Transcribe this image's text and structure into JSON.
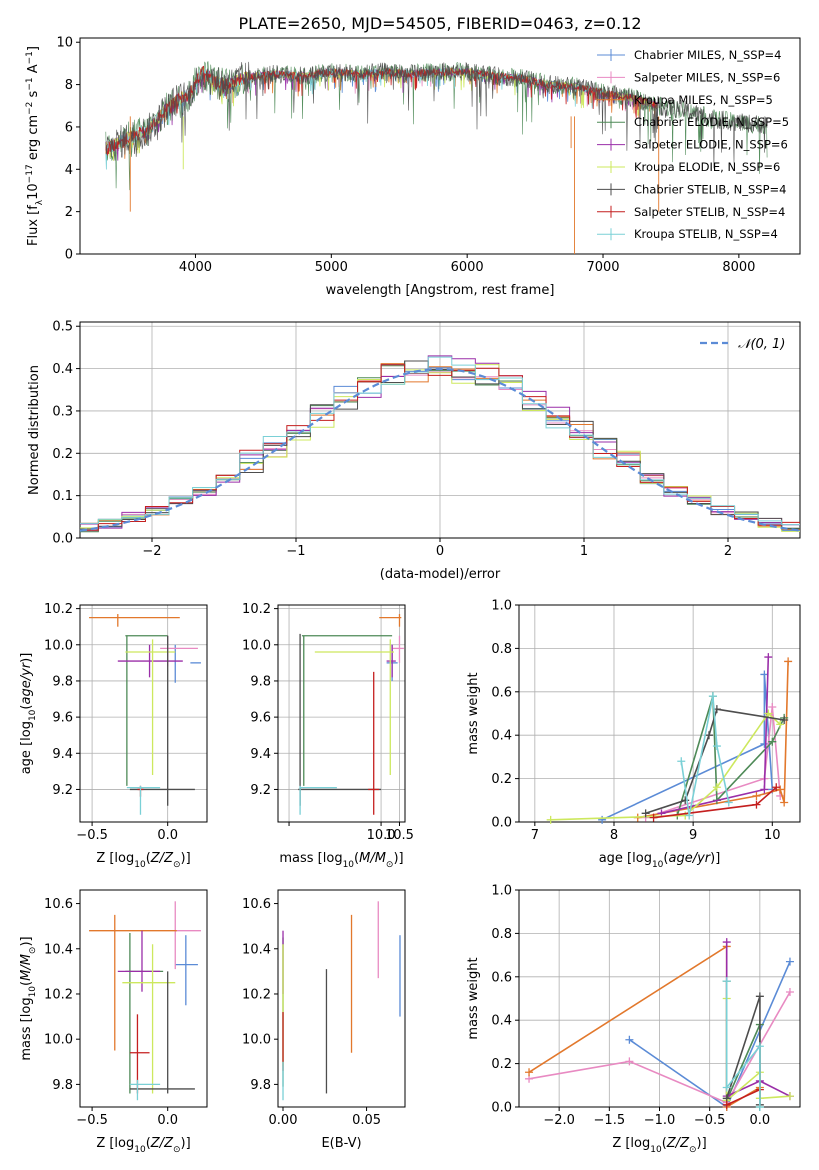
{
  "chart_data": [
    {
      "id": "spectrum",
      "type": "line",
      "title": "PLATE=2650, MJD=54505, FIBERID=0463, z=0.12",
      "xlabel": "wavelength [Angstrom, rest frame]",
      "ylabel": "Flux [f_λ 10^-17 erg cm^-2 s^-1 A^-1]",
      "xlim": [
        3150,
        8450
      ],
      "ylim": [
        0,
        10.2
      ],
      "xticks": [
        4000,
        5000,
        6000,
        7000,
        8000
      ],
      "yticks": [
        0,
        2,
        4,
        6,
        8,
        10
      ],
      "grid": false,
      "legend_position": "top-right",
      "series": [
        {
          "name": "Chabrier MILES, N_SSP=4",
          "color": "#5b8bd6"
        },
        {
          "name": "Salpeter MILES, N_SSP=6",
          "color": "#e88ac2"
        },
        {
          "name": "Kroupa MILES, N_SSP=5",
          "color": "#e2782c"
        },
        {
          "name": "Chabrier ELODIE, N_SSP=5",
          "color": "#4e8a57"
        },
        {
          "name": "Salpeter ELODIE, N_SSP=6",
          "color": "#9a2ea8"
        },
        {
          "name": "Kroupa ELODIE, N_SSP=6",
          "color": "#cde85e"
        },
        {
          "name": "Chabrier STELIB, N_SSP=4",
          "color": "#4d4d4d"
        },
        {
          "name": "Salpeter STELIB, N_SSP=4",
          "color": "#c41f1f"
        },
        {
          "name": "Kroupa STELIB, N_SSP=4",
          "color": "#7ad0d6"
        }
      ],
      "profile_x": [
        3350,
        3450,
        3550,
        3650,
        3750,
        3850,
        3950,
        4050,
        4150,
        4250,
        4350,
        4450,
        4600,
        4800,
        5000,
        5200,
        5400,
        5600,
        5800,
        6000,
        6200,
        6400,
        6600,
        6800,
        7000,
        7200,
        7400,
        7600,
        7800,
        8000,
        8200
      ],
      "profile_y": [
        5.0,
        5.3,
        5.6,
        5.8,
        6.6,
        7.2,
        7.5,
        8.6,
        8.1,
        8.0,
        8.3,
        8.4,
        8.5,
        8.4,
        8.6,
        8.5,
        8.6,
        8.5,
        8.6,
        8.6,
        8.4,
        8.3,
        8.0,
        7.9,
        7.6,
        7.4,
        7.0,
        6.8,
        6.4,
        6.2,
        6.1
      ]
    },
    {
      "id": "residuals",
      "type": "step",
      "xlabel": "(data-model)/error",
      "ylabel": "Normed distribution",
      "xlim": [
        -2.5,
        2.5
      ],
      "ylim": [
        0,
        0.51
      ],
      "xticks": [
        -2,
        -1,
        0,
        1,
        2
      ],
      "yticks": [
        0.0,
        0.1,
        0.2,
        0.3,
        0.4,
        0.5
      ],
      "grid": true,
      "legend": "N(0,1)",
      "legend_position": "top-right",
      "gauss_color": "#5b8bd6",
      "hist_values": [
        0.02,
        0.025,
        0.035,
        0.05,
        0.065,
        0.09,
        0.11,
        0.14,
        0.18,
        0.21,
        0.25,
        0.29,
        0.33,
        0.36,
        0.385,
        0.395,
        0.4,
        0.395,
        0.385,
        0.36,
        0.33,
        0.29,
        0.25,
        0.21,
        0.18,
        0.14,
        0.11,
        0.09,
        0.065,
        0.05,
        0.035,
        0.025,
        0.02
      ]
    },
    {
      "id": "age_vs_z",
      "type": "errorbar",
      "xlabel": "Z [log10(Z/Z⊙)]",
      "ylabel": "age [log10(age/yr)]",
      "xlim": [
        -0.58,
        0.26
      ],
      "ylim": [
        9.02,
        10.22
      ],
      "xticks": [
        -0.5,
        0.0
      ],
      "yticks": [
        9.2,
        9.4,
        9.6,
        9.8,
        10.0,
        10.2
      ],
      "grid": true,
      "points": [
        {
          "x": 0.05,
          "y": 9.9,
          "xlo": 0.15,
          "xhi": 0.22,
          "ylo": 9.79,
          "yhi": 10.0,
          "color": "#5b8bd6"
        },
        {
          "x": 0.0,
          "y": 9.98,
          "xlo": -0.05,
          "xhi": 0.2,
          "ylo": 9.88,
          "yhi": 10.05,
          "color": "#e88ac2"
        },
        {
          "x": -0.33,
          "y": 10.15,
          "xlo": -0.52,
          "xhi": 0.08,
          "ylo": 10.1,
          "yhi": 10.17,
          "color": "#e2782c"
        },
        {
          "x": -0.27,
          "y": 10.05,
          "xlo": -0.28,
          "xhi": 0.0,
          "ylo": 9.22,
          "yhi": 10.05,
          "color": "#4e8a57"
        },
        {
          "x": -0.12,
          "y": 9.91,
          "xlo": -0.33,
          "xhi": 0.1,
          "ylo": 9.82,
          "yhi": 10.0,
          "color": "#9a2ea8"
        },
        {
          "x": -0.1,
          "y": 9.96,
          "xlo": -0.28,
          "xhi": 0.05,
          "ylo": 9.28,
          "yhi": 10.03,
          "color": "#cde85e"
        },
        {
          "x": 0.0,
          "y": 9.2,
          "xlo": -0.25,
          "xhi": 0.18,
          "ylo": 9.11,
          "yhi": 10.05,
          "color": "#4d4d4d"
        },
        {
          "x": -0.18,
          "y": 9.2,
          "xlo": -0.2,
          "xhi": -0.16,
          "ylo": 9.16,
          "yhi": 9.22,
          "color": "#c41f1f"
        },
        {
          "x": -0.18,
          "y": 9.21,
          "xlo": -0.27,
          "xhi": -0.05,
          "ylo": 9.06,
          "yhi": 9.22,
          "color": "#7ad0d6"
        }
      ]
    },
    {
      "id": "age_vs_mass",
      "type": "errorbar",
      "xlabel": "mass [log10(M/M⊙)]",
      "ylabel": "",
      "xlim": [
        7.2,
        10.65
      ],
      "ylim": [
        9.02,
        10.22
      ],
      "xticks": [
        7.5,
        10.0,
        10.5
      ],
      "xtick_labels": [
        "",
        "10.0",
        "10.5"
      ],
      "yticks": [
        9.2,
        9.4,
        9.6,
        9.8,
        10.0,
        10.2
      ],
      "grid": true,
      "points": [
        {
          "x": 10.3,
          "y": 9.9,
          "xlo": 10.15,
          "xhi": 10.45,
          "ylo": 9.8,
          "yhi": 10.0,
          "color": "#5b8bd6"
        },
        {
          "x": 10.5,
          "y": 9.98,
          "xlo": 10.3,
          "xhi": 10.62,
          "ylo": 9.9,
          "yhi": 10.05,
          "color": "#e88ac2"
        },
        {
          "x": 10.5,
          "y": 10.15,
          "xlo": 9.95,
          "xhi": 10.55,
          "ylo": 10.1,
          "yhi": 10.17,
          "color": "#e2782c"
        },
        {
          "x": 7.9,
          "y": 10.05,
          "xlo": 7.85,
          "xhi": 10.3,
          "ylo": 9.22,
          "yhi": 10.05,
          "color": "#4e8a57"
        },
        {
          "x": 10.3,
          "y": 9.91,
          "xlo": 10.15,
          "xhi": 10.4,
          "ylo": 9.82,
          "yhi": 10.0,
          "color": "#9a2ea8"
        },
        {
          "x": 10.25,
          "y": 9.96,
          "xlo": 8.2,
          "xhi": 10.35,
          "ylo": 9.28,
          "yhi": 10.03,
          "color": "#cde85e"
        },
        {
          "x": 7.8,
          "y": 9.2,
          "xlo": 7.75,
          "xhi": 10.0,
          "ylo": 9.11,
          "yhi": 10.06,
          "color": "#4d4d4d"
        },
        {
          "x": 9.8,
          "y": 9.2,
          "xlo": 9.65,
          "xhi": 9.95,
          "ylo": 9.06,
          "yhi": 9.85,
          "color": "#c41f1f"
        },
        {
          "x": 7.8,
          "y": 9.21,
          "xlo": 7.8,
          "xhi": 8.8,
          "ylo": 9.06,
          "yhi": 9.22,
          "color": "#7ad0d6"
        }
      ]
    },
    {
      "id": "weight_vs_age",
      "type": "line",
      "xlabel": "age [log10(age/yr)]",
      "ylabel": "mass weight",
      "xlim": [
        6.8,
        10.35
      ],
      "ylim": [
        0,
        1.0
      ],
      "xticks": [
        7,
        8,
        9,
        10
      ],
      "yticks": [
        0.0,
        0.2,
        0.4,
        0.6,
        0.8,
        1.0
      ],
      "grid": true,
      "series": [
        {
          "color": "#5b8bd6",
          "x": [
            7.85,
            9.9,
            9.9,
            10.0
          ],
          "y": [
            0.01,
            0.36,
            0.68,
            0.15
          ]
        },
        {
          "color": "#e88ac2",
          "x": [
            8.4,
            9.9,
            10.0,
            10.1
          ],
          "y": [
            0.02,
            0.2,
            0.53,
            0.12
          ]
        },
        {
          "color": "#e2782c",
          "x": [
            8.3,
            9.8,
            10.1,
            10.15,
            10.2
          ],
          "y": [
            0.02,
            0.12,
            0.15,
            0.09,
            0.74
          ]
        },
        {
          "color": "#4e8a57",
          "x": [
            8.8,
            9.25,
            9.3,
            10.0,
            10.15
          ],
          "y": [
            0.03,
            0.58,
            0.1,
            0.37,
            0.48
          ]
        },
        {
          "color": "#9a2ea8",
          "x": [
            8.6,
            9.9,
            9.95
          ],
          "y": [
            0.04,
            0.15,
            0.76
          ]
        },
        {
          "color": "#cde85e",
          "x": [
            7.2,
            8.9,
            9.3,
            9.95,
            10.1
          ],
          "y": [
            0.01,
            0.03,
            0.16,
            0.5,
            0.45
          ]
        },
        {
          "color": "#4d4d4d",
          "x": [
            8.4,
            8.9,
            9.2,
            9.3,
            10.15
          ],
          "y": [
            0.04,
            0.1,
            0.4,
            0.52,
            0.47
          ]
        },
        {
          "color": "#c41f1f",
          "x": [
            8.5,
            9.8,
            10.05
          ],
          "y": [
            0.02,
            0.08,
            0.16
          ]
        },
        {
          "color": "#7ad0d6",
          "x": [
            8.85,
            8.95,
            9.25,
            9.3,
            9.45
          ],
          "y": [
            0.28,
            0.03,
            0.58,
            0.35,
            0.09
          ]
        }
      ]
    },
    {
      "id": "mass_vs_z",
      "type": "errorbar",
      "xlabel": "Z [log10(Z/Z⊙)]",
      "ylabel": "mass [log10(M/M⊙)]",
      "xlim": [
        -0.58,
        0.26
      ],
      "ylim": [
        9.7,
        10.66
      ],
      "xticks": [
        -0.5,
        0.0
      ],
      "yticks": [
        9.8,
        10.0,
        10.2,
        10.4,
        10.6
      ],
      "grid": false,
      "points": [
        {
          "x": 0.12,
          "y": 10.33,
          "xlo": 0.05,
          "xhi": 0.2,
          "ylo": 10.15,
          "yhi": 10.46,
          "color": "#5b8bd6"
        },
        {
          "x": 0.05,
          "y": 10.48,
          "xlo": 0.05,
          "xhi": 0.22,
          "ylo": 10.31,
          "yhi": 10.61,
          "color": "#e88ac2"
        },
        {
          "x": -0.35,
          "y": 10.48,
          "xlo": -0.52,
          "xhi": 0.06,
          "ylo": 9.95,
          "yhi": 10.55,
          "color": "#e2782c"
        },
        {
          "x": -0.25,
          "y": 10.3,
          "xlo": -0.28,
          "xhi": -0.03,
          "ylo": 9.76,
          "yhi": 10.47,
          "color": "#4e8a57"
        },
        {
          "x": -0.17,
          "y": 10.3,
          "xlo": -0.33,
          "xhi": -0.05,
          "ylo": 10.21,
          "yhi": 10.48,
          "color": "#9a2ea8"
        },
        {
          "x": -0.1,
          "y": 10.25,
          "xlo": -0.3,
          "xhi": 0.05,
          "ylo": 9.76,
          "yhi": 10.42,
          "color": "#cde85e"
        },
        {
          "x": 0.0,
          "y": 9.78,
          "xlo": -0.25,
          "xhi": 0.18,
          "ylo": 9.76,
          "yhi": 10.3,
          "color": "#4d4d4d"
        },
        {
          "x": -0.2,
          "y": 9.94,
          "xlo": -0.25,
          "xhi": -0.12,
          "ylo": 9.76,
          "yhi": 10.11,
          "color": "#c41f1f"
        },
        {
          "x": -0.2,
          "y": 9.8,
          "xlo": -0.25,
          "xhi": -0.05,
          "ylo": 9.73,
          "yhi": 9.82,
          "color": "#7ad0d6"
        }
      ]
    },
    {
      "id": "mass_vs_ebv",
      "type": "errorbar",
      "xlabel": "E(B-V)",
      "ylabel": "",
      "xlim": [
        -0.003,
        0.073
      ],
      "ylim": [
        9.7,
        10.66
      ],
      "xticks": [
        0.0,
        0.05
      ],
      "yticks": [
        9.8,
        10.0,
        10.2,
        10.4,
        10.6
      ],
      "grid": false,
      "points": [
        {
          "x": 0.07,
          "y": 10.28,
          "ylo": 10.1,
          "yhi": 10.46,
          "color": "#5b8bd6"
        },
        {
          "x": 0.057,
          "y": 10.44,
          "ylo": 10.27,
          "yhi": 10.61,
          "color": "#e88ac2"
        },
        {
          "x": 0.041,
          "y": 10.24,
          "ylo": 9.94,
          "yhi": 10.55,
          "color": "#e2782c"
        },
        {
          "x": 0.0,
          "y": 10.1,
          "ylo": 9.79,
          "yhi": 10.45,
          "color": "#4e8a57"
        },
        {
          "x": 0.0,
          "y": 10.35,
          "ylo": 10.2,
          "yhi": 10.48,
          "color": "#9a2ea8"
        },
        {
          "x": 0.0,
          "y": 10.15,
          "ylo": 9.88,
          "yhi": 10.42,
          "color": "#cde85e"
        },
        {
          "x": 0.026,
          "y": 10.0,
          "ylo": 9.76,
          "yhi": 10.31,
          "color": "#4d4d4d"
        },
        {
          "x": 0.0,
          "y": 10.0,
          "ylo": 9.86,
          "yhi": 10.12,
          "color": "#c41f1f"
        },
        {
          "x": 0.0,
          "y": 9.8,
          "ylo": 9.73,
          "yhi": 9.9,
          "color": "#7ad0d6"
        }
      ]
    },
    {
      "id": "weight_vs_z",
      "type": "line",
      "xlabel": "Z [log10(Z/Z⊙)]",
      "ylabel": "mass weight",
      "xlim": [
        -2.4,
        0.4
      ],
      "ylim": [
        0,
        1.0
      ],
      "xticks": [
        -2.0,
        -1.5,
        -1.0,
        -0.5,
        0.0
      ],
      "yticks": [
        0.0,
        0.2,
        0.4,
        0.6,
        0.8,
        1.0
      ],
      "grid": true,
      "series": [
        {
          "color": "#5b8bd6",
          "x": [
            -1.3,
            -0.33,
            0.3
          ],
          "y": [
            0.31,
            0.0,
            0.67
          ]
        },
        {
          "color": "#e88ac2",
          "x": [
            -2.3,
            -1.3,
            -0.33,
            0.3
          ],
          "y": [
            0.13,
            0.21,
            0.02,
            0.53
          ]
        },
        {
          "color": "#e2782c",
          "x": [
            -2.3,
            -0.33,
            -0.33,
            0.0
          ],
          "y": [
            0.16,
            0.74,
            0.0,
            0.09
          ]
        },
        {
          "color": "#4e8a57",
          "x": [
            -0.33,
            -0.33,
            0.0,
            0.0
          ],
          "y": [
            0.58,
            0.03,
            0.38,
            0.0
          ]
        },
        {
          "color": "#9a2ea8",
          "x": [
            -0.33,
            -0.33,
            0.0,
            0.3
          ],
          "y": [
            0.76,
            0.05,
            0.12,
            0.05
          ]
        },
        {
          "color": "#cde85e",
          "x": [
            -0.33,
            -0.33,
            0.0,
            0.0,
            0.3
          ],
          "y": [
            0.5,
            0.03,
            0.16,
            0.04,
            0.05
          ]
        },
        {
          "color": "#4d4d4d",
          "x": [
            -0.33,
            0.0,
            0.0
          ],
          "y": [
            0.04,
            0.51,
            0.01
          ]
        },
        {
          "color": "#c41f1f",
          "x": [
            -0.33,
            0.0
          ],
          "y": [
            0.01,
            0.08
          ]
        },
        {
          "color": "#7ad0d6",
          "x": [
            -0.33,
            -0.33,
            0.0,
            0.0
          ],
          "y": [
            0.58,
            0.09,
            0.28,
            0.0
          ]
        }
      ]
    }
  ]
}
